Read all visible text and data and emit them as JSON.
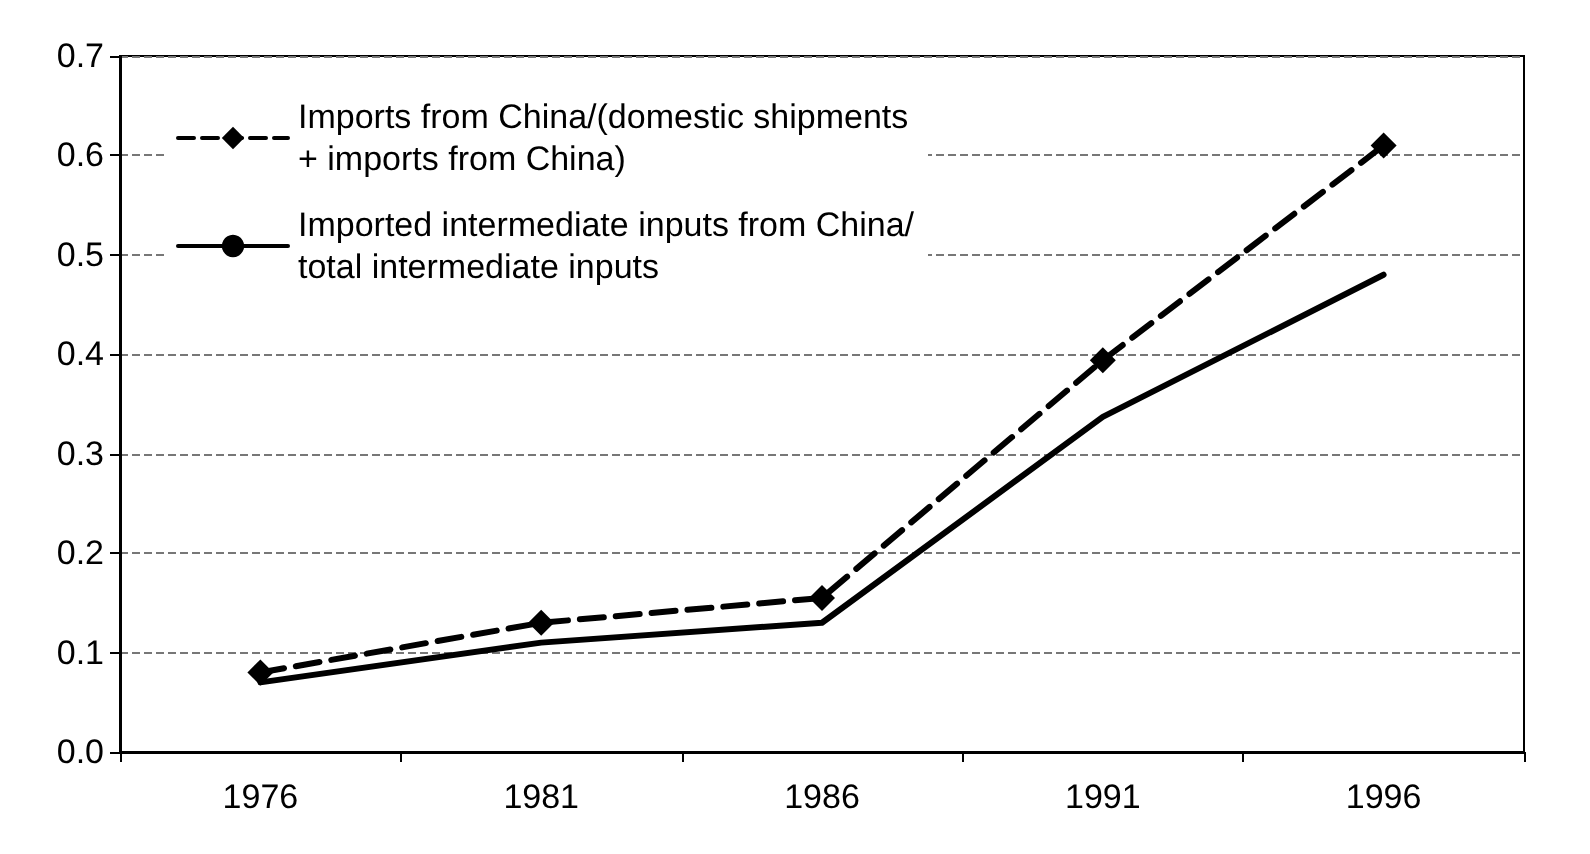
{
  "chart_data": {
    "type": "line",
    "categories": [
      "1976",
      "1981",
      "1986",
      "1991",
      "1996"
    ],
    "series": [
      {
        "name": "Imports from China/(domestic shipments + imports from China)",
        "color": "#000000",
        "values": [
          0.08,
          0.13,
          0.155,
          0.394,
          0.61
        ],
        "marker": "diamond",
        "line_style": "dashed"
      },
      {
        "name": "Imported intermediate inputs from China/total intermediate inputs",
        "color": "#000000",
        "values": [
          0.07,
          0.11,
          0.13,
          0.337,
          0.48
        ],
        "marker": "none",
        "line_style": "solid"
      }
    ],
    "ylim": [
      0,
      0.7
    ],
    "yticks": [
      {
        "value": 0,
        "label": "0.0"
      },
      0.1,
      0.2,
      0.3,
      0.4,
      0.5,
      0.6,
      0.7
    ],
    "grid": "y",
    "legend": "top left"
  }
}
